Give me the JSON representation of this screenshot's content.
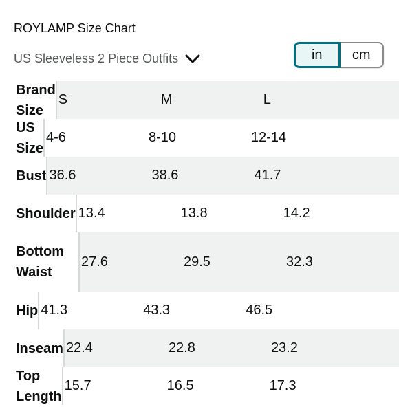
{
  "header": {
    "title": "ROYLAMP Size Chart",
    "subtitle": "US Sleeveless 2 Piece Outfits",
    "dropdown_icon": "chevron-down-icon"
  },
  "unit_toggle": {
    "options": [
      "in",
      "cm"
    ],
    "selected": "in"
  },
  "colors": {
    "accent": "#007185",
    "row_shade": "#f0f2f2",
    "text": "#0f1111",
    "muted": "#565959"
  },
  "table": {
    "rows": [
      {
        "label": "Brand Size",
        "values": [
          "S",
          "M",
          "L"
        ]
      },
      {
        "label": "US Size",
        "values": [
          "4-6",
          "8-10",
          "12-14"
        ]
      },
      {
        "label": "Bust",
        "values": [
          "36.6",
          "38.6",
          "41.7"
        ]
      },
      {
        "label": "Shoulder",
        "values": [
          "13.4",
          "13.8",
          "14.2"
        ]
      },
      {
        "label": "Bottom Waist",
        "values": [
          "27.6",
          "29.5",
          "32.3"
        ]
      },
      {
        "label": "Hip",
        "values": [
          "41.3",
          "43.3",
          "46.5"
        ]
      },
      {
        "label": "Inseam",
        "values": [
          "22.4",
          "22.8",
          "23.2"
        ]
      },
      {
        "label": "Top Length",
        "values": [
          "15.7",
          "16.5",
          "17.3"
        ]
      }
    ]
  }
}
